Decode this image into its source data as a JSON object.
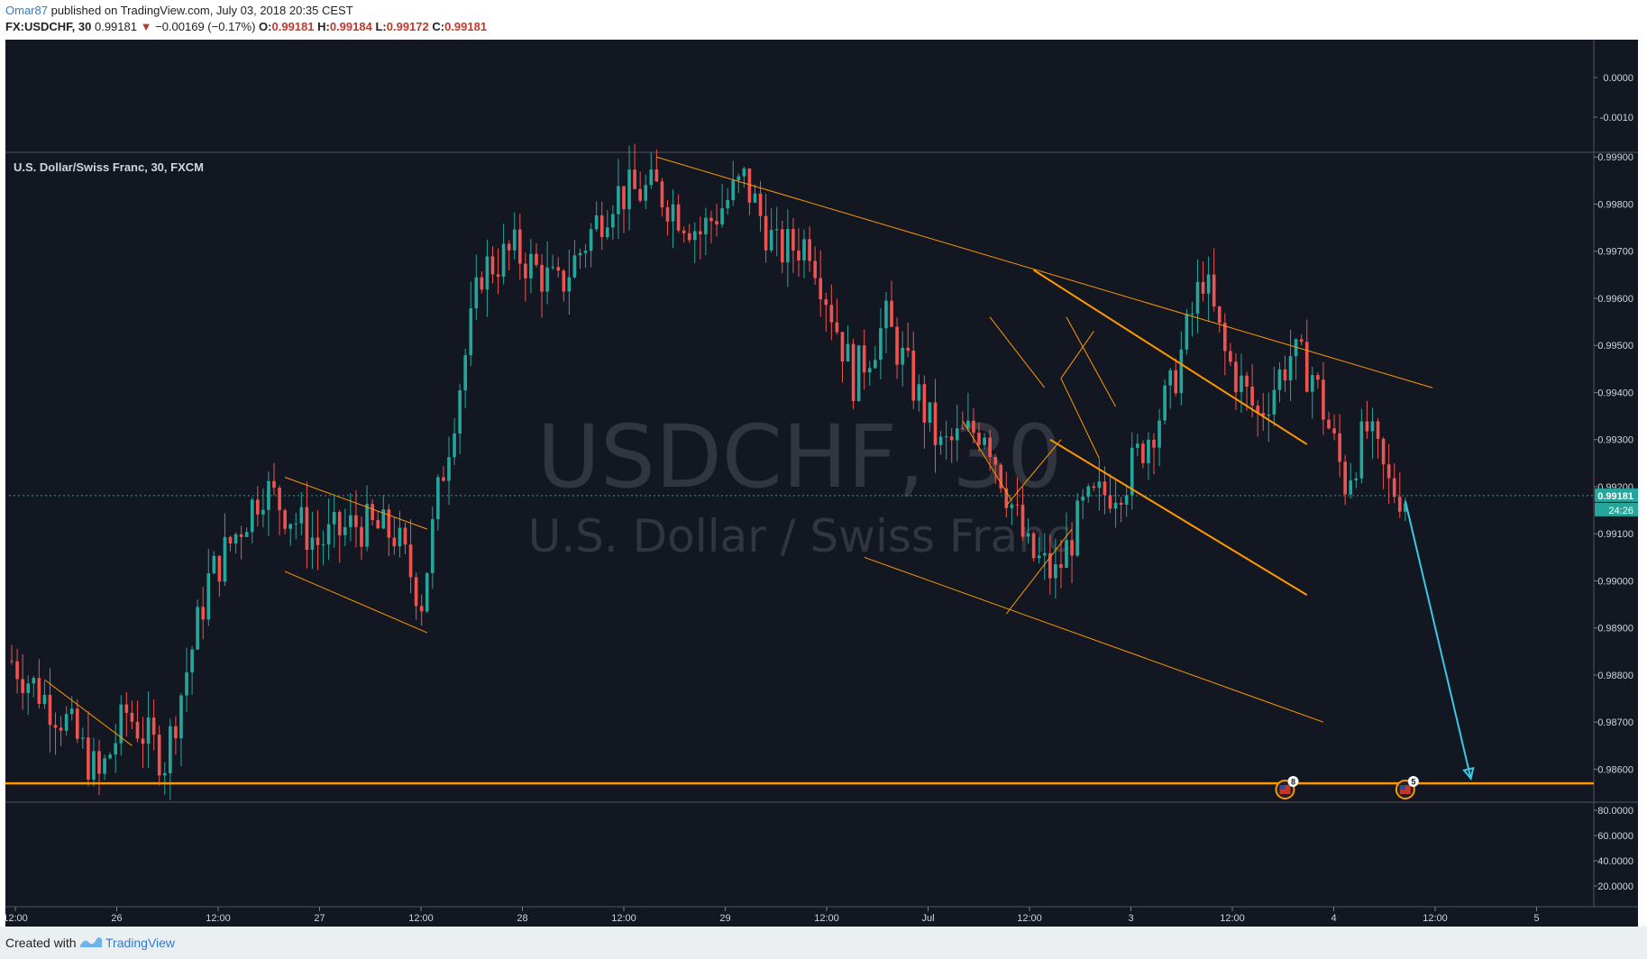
{
  "header": {
    "author": "Omar87",
    "published_text": "published on TradingView.com, July 03, 2018 20:35 CEST",
    "symbol": "FX:USDCHF, 30",
    "last": "0.99181",
    "change_arrow": "▼",
    "change": "−0.00169 (−0.17%)",
    "o_label": "O:",
    "o_value": "0.99181",
    "h_label": "H:",
    "h_value": "0.99184",
    "l_label": "L:",
    "l_value": "0.99172",
    "c_label": "C:",
    "c_value": "0.99181"
  },
  "footer": {
    "created_with": "Created with",
    "brand": "TradingView"
  },
  "colors": {
    "background": "#131722",
    "bull": "#26a69a",
    "bear": "#ef5350",
    "trendline": "#ff9800",
    "projection": "#3cc7e6",
    "price_tag": "#26a69a"
  },
  "chart_data": [
    {
      "type": "candlestick",
      "title": "U.S. Dollar/Swiss Franc, 30, FXCM",
      "watermark_symbol": "USDCHF, 30",
      "watermark_name": "U.S. Dollar / Swiss Franc",
      "ylim": [
        0.9853,
        0.9991
      ],
      "y_ticks": [
        "0.99900",
        "0.99800",
        "0.99700",
        "0.99600",
        "0.99500",
        "0.99400",
        "0.99300",
        "0.99200",
        "0.99100",
        "0.99000",
        "0.98900",
        "0.98800",
        "0.98700",
        "0.98600"
      ],
      "x_ticks": [
        "12:00",
        "26",
        "12:00",
        "27",
        "12:00",
        "28",
        "12:00",
        "29",
        "12:00",
        "Jul",
        "12:00",
        "3",
        "12:00",
        "4",
        "12:00",
        "5"
      ],
      "last_price": "0.99181",
      "countdown": "24:26",
      "close_waypoints": [
        [
          0,
          0.9883
        ],
        [
          10,
          0.987
        ],
        [
          16,
          0.9858
        ],
        [
          21,
          0.9872
        ],
        [
          28,
          0.9862
        ],
        [
          36,
          0.99
        ],
        [
          46,
          0.992
        ],
        [
          56,
          0.9908
        ],
        [
          63,
          0.9912
        ],
        [
          70,
          0.991
        ],
        [
          75,
          0.9896
        ],
        [
          78,
          0.9918
        ],
        [
          86,
          0.9966
        ],
        [
          92,
          0.997
        ],
        [
          100,
          0.9962
        ],
        [
          110,
          0.9982
        ],
        [
          118,
          0.9983
        ],
        [
          126,
          0.9974
        ],
        [
          134,
          0.9985
        ],
        [
          140,
          0.997
        ],
        [
          146,
          0.9972
        ],
        [
          154,
          0.9943
        ],
        [
          160,
          0.9955
        ],
        [
          170,
          0.9928
        ],
        [
          178,
          0.9933
        ],
        [
          186,
          0.9906
        ],
        [
          191,
          0.9901
        ],
        [
          196,
          0.9915
        ],
        [
          204,
          0.9922
        ],
        [
          212,
          0.994
        ],
        [
          218,
          0.9965
        ],
        [
          222,
          0.9948
        ],
        [
          228,
          0.9935
        ],
        [
          234,
          0.9948
        ],
        [
          238,
          0.9944
        ],
        [
          244,
          0.9921
        ],
        [
          248,
          0.9932
        ],
        [
          252,
          0.992
        ],
        [
          255,
          0.9918
        ]
      ],
      "trendlines": [
        {
          "from": [
            6,
            0.9879
          ],
          "to": [
            22,
            0.9865
          ]
        },
        {
          "from": [
            50,
            0.9922
          ],
          "to": [
            76,
            0.9911
          ]
        },
        {
          "from": [
            50,
            0.9902
          ],
          "to": [
            76,
            0.9889
          ]
        },
        {
          "from": [
            118,
            0.999
          ],
          "to": [
            260,
            0.9941
          ]
        },
        {
          "from": [
            174,
            0.9934
          ],
          "to": [
            183,
            0.9917
          ]
        },
        {
          "from": [
            179,
            0.9956
          ],
          "to": [
            189,
            0.9941
          ]
        },
        {
          "from": [
            156,
            0.9905
          ],
          "to": [
            240,
            0.987
          ]
        },
        {
          "from": [
            182,
            0.9916
          ],
          "to": [
            192,
            0.993
          ]
        },
        {
          "from": [
            182,
            0.9893
          ],
          "to": [
            194,
            0.9911
          ]
        },
        {
          "from": [
            187,
            0.9966
          ],
          "to": [
            237,
            0.9929
          ],
          "width": 2
        },
        {
          "from": [
            190,
            0.993
          ],
          "to": [
            237,
            0.9897
          ],
          "width": 2
        },
        {
          "from": [
            192,
            0.9943
          ],
          "to": [
            198,
            0.9953
          ]
        },
        {
          "from": [
            192,
            0.9943
          ],
          "to": [
            199,
            0.9926
          ]
        },
        {
          "from": [
            193,
            0.9956
          ],
          "to": [
            202,
            0.9937
          ]
        }
      ],
      "support_level": 0.9857,
      "projection": {
        "from": [
          255,
          0.9917
        ],
        "to": [
          267,
          0.9858
        ]
      },
      "event_markers": [
        {
          "x": 233,
          "label": "8"
        },
        {
          "x": 255,
          "label": "5"
        }
      ]
    },
    {
      "type": "indicator",
      "y_ticks": [
        "0.0000",
        "-0.0010"
      ]
    },
    {
      "type": "indicator",
      "y_ticks": [
        "80.0000",
        "60.0000",
        "40.0000",
        "20.0000"
      ]
    }
  ]
}
